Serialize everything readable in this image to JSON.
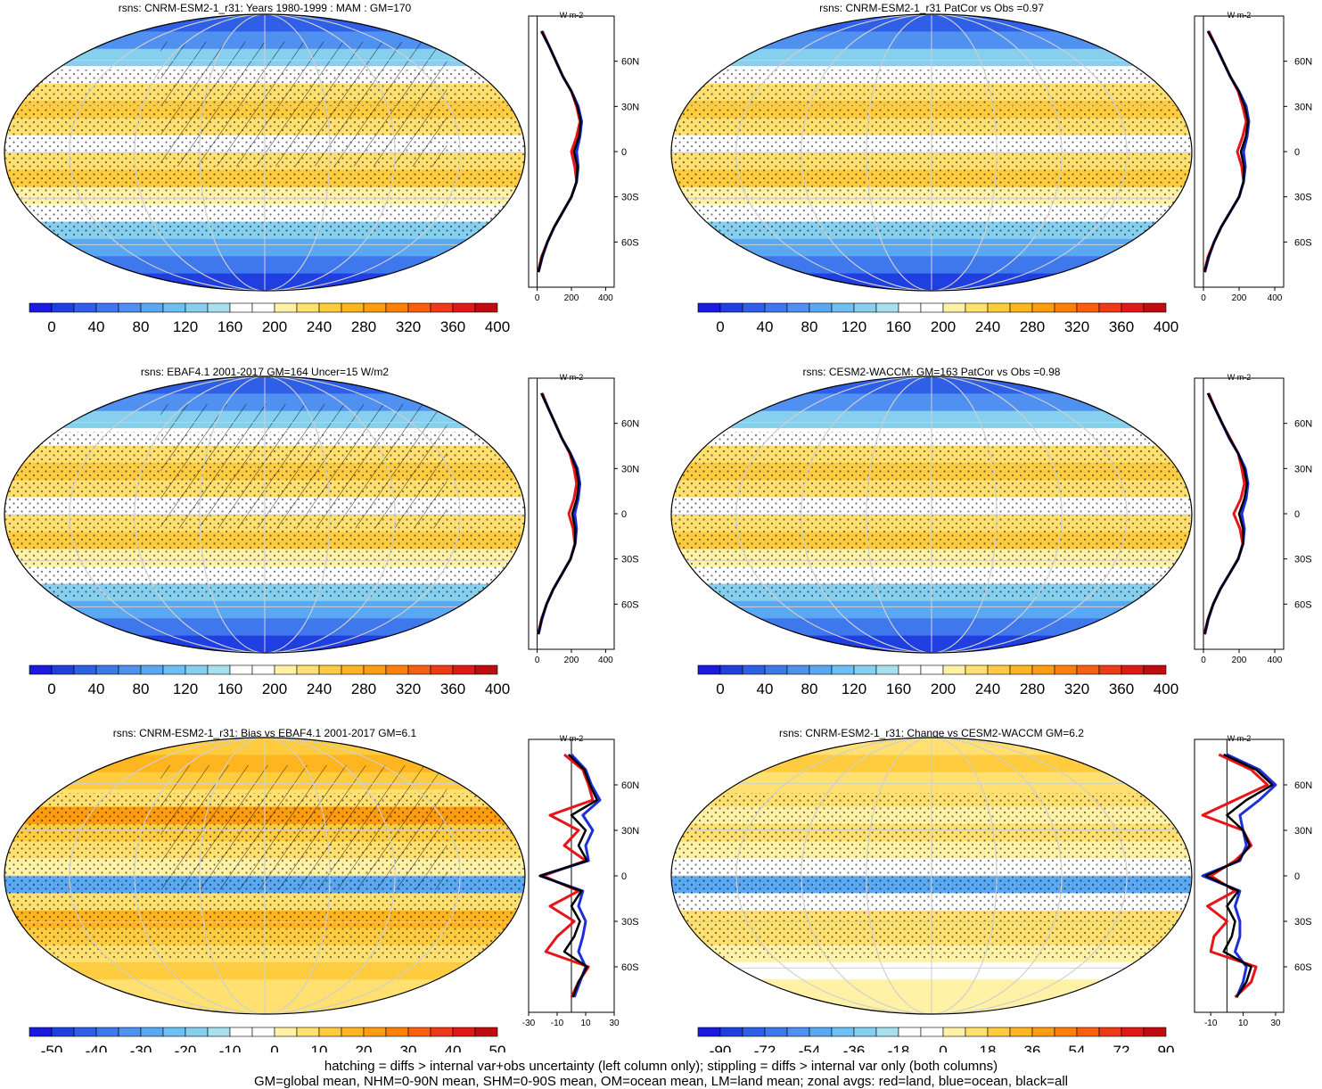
{
  "footer": {
    "line1": "hatching = diffs > internal var+obs uncertainty (left column only); stippling = diffs > internal var only (both columns)",
    "line2": "GM=global mean, NHM=0-90N mean, SHM=0-90S mean, OM=ocean mean, LM=land mean; zonal avgs: red=land, blue=ocean, black=all"
  },
  "colors": {
    "land": "#e8141a",
    "ocean": "#1c2fd8",
    "all": "#000000"
  },
  "scales": {
    "abs": {
      "ticks": [
        "0",
        "40",
        "80",
        "120",
        "160",
        "200",
        "240",
        "280",
        "320",
        "360",
        "400"
      ],
      "colors": [
        "#1a1ae0",
        "#1f3fe0",
        "#2f5fe6",
        "#3f78ec",
        "#4f90f0",
        "#5aa8f2",
        "#6cc0f2",
        "#86cfee",
        "#a6e0ef",
        "#ffffff",
        "#ffffff",
        "#fff2a6",
        "#ffe070",
        "#ffcc40",
        "#ffb520",
        "#ff9c10",
        "#ff8008",
        "#f86010",
        "#ee3a16",
        "#e01818",
        "#c00c10"
      ]
    },
    "bias": {
      "ticks": [
        "-50",
        "-40",
        "-30",
        "-20",
        "-10",
        "0",
        "10",
        "20",
        "30",
        "40",
        "50"
      ],
      "colors": [
        "#1a1ae0",
        "#1f3fe0",
        "#2f5fe6",
        "#3f78ec",
        "#4f90f0",
        "#5aa8f2",
        "#6cc0f2",
        "#86cfee",
        "#a6e0ef",
        "#ffffff",
        "#ffffff",
        "#fff2a6",
        "#ffe070",
        "#ffcc40",
        "#ffb520",
        "#ff9c10",
        "#ff8008",
        "#f86010",
        "#ee3a16",
        "#e01818",
        "#c00c10"
      ]
    },
    "change": {
      "ticks": [
        "-90",
        "-72",
        "-54",
        "-36",
        "-18",
        "0",
        "18",
        "36",
        "54",
        "72",
        "90"
      ],
      "colors": [
        "#1a1ae0",
        "#1f3fe0",
        "#2f5fe6",
        "#3f78ec",
        "#4f90f0",
        "#5aa8f2",
        "#6cc0f2",
        "#86cfee",
        "#a6e0ef",
        "#ffffff",
        "#ffffff",
        "#fff2a6",
        "#ffe070",
        "#ffcc40",
        "#ffb520",
        "#ff9c10",
        "#ff8008",
        "#f86010",
        "#ee3a16",
        "#e01818",
        "#c00c10"
      ]
    }
  },
  "chart_data": [
    {
      "type": "heatmap",
      "title": "rsns: CNRM-ESM2-1_r31: Years 1980-1999 : MAM : GM=170",
      "kind": "abs",
      "hatching": true,
      "profile": {
        "unit": "W m-2",
        "xticks": [
          "0",
          "200",
          "400"
        ],
        "xrange": [
          -50,
          450
        ],
        "yticks": [
          "60N",
          "30N",
          "0",
          "30S",
          "60S"
        ],
        "zero_line": false,
        "lat": [
          80,
          70,
          60,
          50,
          40,
          30,
          20,
          10,
          0,
          -10,
          -20,
          -30,
          -40,
          -50,
          -60,
          -70,
          -80
        ],
        "land": [
          30,
          70,
          110,
          150,
          200,
          230,
          250,
          230,
          200,
          220,
          230,
          200,
          150,
          100,
          60,
          25,
          5
        ],
        "ocean": [
          25,
          70,
          110,
          150,
          200,
          240,
          260,
          250,
          230,
          240,
          230,
          200,
          150,
          100,
          60,
          30,
          8
        ],
        "all": [
          25,
          70,
          110,
          150,
          200,
          235,
          255,
          245,
          215,
          235,
          230,
          200,
          150,
          100,
          60,
          28,
          6
        ]
      }
    },
    {
      "type": "heatmap",
      "title": "rsns: CNRM-ESM2-1_r31 PatCor vs Obs =0.97",
      "kind": "abs",
      "hatching": false,
      "profile": {
        "unit": "W m-2",
        "xticks": [
          "0",
          "200",
          "400"
        ],
        "xrange": [
          -50,
          450
        ],
        "yticks": [
          "60N",
          "30N",
          "0",
          "30S",
          "60S"
        ],
        "zero_line": false,
        "lat": [
          80,
          70,
          60,
          50,
          40,
          30,
          20,
          10,
          0,
          -10,
          -20,
          -30,
          -40,
          -50,
          -60,
          -70,
          -80
        ],
        "land": [
          30,
          70,
          110,
          150,
          195,
          220,
          240,
          220,
          190,
          215,
          225,
          200,
          150,
          100,
          60,
          25,
          5
        ],
        "ocean": [
          25,
          70,
          110,
          150,
          200,
          240,
          255,
          245,
          225,
          235,
          225,
          200,
          150,
          100,
          60,
          30,
          8
        ],
        "all": [
          25,
          70,
          110,
          150,
          198,
          232,
          250,
          238,
          210,
          228,
          225,
          200,
          150,
          100,
          60,
          28,
          6
        ]
      }
    },
    {
      "type": "heatmap",
      "title": "rsns: EBAF4.1 2001-2017 GM=164 Uncer=15 W/m2",
      "kind": "abs",
      "hatching": true,
      "profile": {
        "unit": "W m-2",
        "xticks": [
          "0",
          "200",
          "400"
        ],
        "xrange": [
          -50,
          450
        ],
        "yticks": [
          "60N",
          "30N",
          "0",
          "30S",
          "60S"
        ],
        "zero_line": false,
        "lat": [
          80,
          70,
          60,
          50,
          40,
          30,
          20,
          10,
          0,
          -10,
          -20,
          -30,
          -40,
          -50,
          -60,
          -70,
          -80
        ],
        "land": [
          30,
          65,
          105,
          145,
          190,
          215,
          230,
          215,
          185,
          210,
          220,
          195,
          145,
          95,
          55,
          25,
          5
        ],
        "ocean": [
          25,
          65,
          105,
          145,
          195,
          235,
          250,
          240,
          220,
          230,
          222,
          195,
          145,
          95,
          55,
          28,
          8
        ],
        "all": [
          25,
          65,
          105,
          145,
          193,
          228,
          244,
          232,
          205,
          222,
          222,
          195,
          145,
          95,
          55,
          26,
          6
        ]
      }
    },
    {
      "type": "heatmap",
      "title": "rsns: CESM2-WACCM: GM=163 PatCor vs Obs =0.98",
      "kind": "abs",
      "hatching": false,
      "profile": {
        "unit": "W m-2",
        "xticks": [
          "0",
          "200",
          "400"
        ],
        "xrange": [
          -50,
          450
        ],
        "yticks": [
          "60N",
          "30N",
          "0",
          "30S",
          "60S"
        ],
        "zero_line": false,
        "lat": [
          80,
          70,
          60,
          50,
          40,
          30,
          20,
          10,
          0,
          -10,
          -20,
          -30,
          -40,
          -50,
          -60,
          -70,
          -80
        ],
        "land": [
          30,
          65,
          105,
          150,
          195,
          215,
          230,
          210,
          170,
          205,
          220,
          195,
          145,
          95,
          55,
          25,
          5
        ],
        "ocean": [
          25,
          65,
          105,
          145,
          195,
          235,
          250,
          240,
          215,
          230,
          222,
          195,
          145,
          95,
          55,
          28,
          8
        ],
        "all": [
          25,
          65,
          105,
          147,
          195,
          228,
          244,
          230,
          200,
          222,
          222,
          195,
          145,
          95,
          55,
          26,
          6
        ]
      }
    },
    {
      "type": "heatmap",
      "title": "rsns: CNRM-ESM2-1_r31: Bias vs EBAF4.1 2001-2017 GM=6.1",
      "kind": "bias",
      "hatching": true,
      "profile": {
        "unit": "W m-2",
        "xticks": [
          "-30",
          "-10",
          "10",
          "30"
        ],
        "xrange": [
          -30,
          30
        ],
        "yticks": [
          "60N",
          "30N",
          "0",
          "30S",
          "60S"
        ],
        "zero_line": true,
        "lat": [
          80,
          70,
          60,
          50,
          40,
          30,
          20,
          10,
          0,
          -10,
          -20,
          -30,
          -40,
          -50,
          -60,
          -70,
          -80
        ],
        "land": [
          -5,
          8,
          12,
          15,
          -15,
          5,
          -5,
          10,
          -20,
          5,
          -15,
          2,
          -10,
          -18,
          12,
          5,
          0
        ],
        "ocean": [
          0,
          10,
          14,
          20,
          8,
          15,
          10,
          12,
          -22,
          8,
          5,
          10,
          8,
          5,
          10,
          6,
          2
        ],
        "all": [
          -2,
          9,
          13,
          18,
          0,
          10,
          5,
          11,
          -22,
          7,
          0,
          6,
          2,
          -5,
          11,
          5,
          1
        ]
      }
    },
    {
      "type": "heatmap",
      "title": "rsns: CNRM-ESM2-1_r31: Change vs CESM2-WACCM GM=6.2",
      "kind": "change",
      "hatching": false,
      "profile": {
        "unit": "W m-2",
        "xticks": [
          "-10",
          "10",
          "30"
        ],
        "xrange": [
          -20,
          35
        ],
        "yticks": [
          "60N",
          "30N",
          "0",
          "30S",
          "60S"
        ],
        "zero_line": true,
        "lat": [
          80,
          70,
          60,
          50,
          40,
          30,
          20,
          10,
          0,
          -10,
          -20,
          -30,
          -40,
          -50,
          -60,
          -70,
          -80
        ],
        "land": [
          -5,
          15,
          25,
          5,
          -15,
          10,
          15,
          5,
          -10,
          5,
          -12,
          0,
          -8,
          -10,
          18,
          15,
          5
        ],
        "ocean": [
          0,
          20,
          30,
          20,
          8,
          10,
          12,
          8,
          -15,
          8,
          5,
          8,
          8,
          5,
          12,
          10,
          6
        ],
        "all": [
          -2,
          18,
          28,
          12,
          0,
          10,
          14,
          7,
          -13,
          7,
          0,
          5,
          3,
          -2,
          15,
          12,
          6
        ]
      }
    }
  ]
}
